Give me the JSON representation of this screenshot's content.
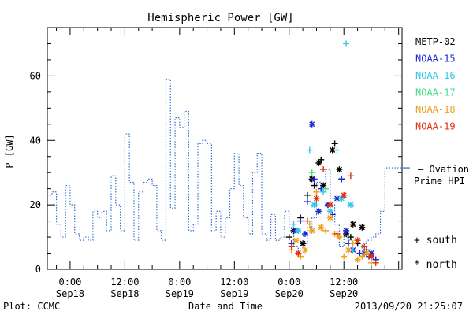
{
  "chart_data": {
    "type": "line",
    "title": "Hemispheric Power [GW]",
    "ylabel": "P [GW]",
    "xlabel": "Date and Time",
    "ylim": [
      0,
      75
    ],
    "xlim": [
      "2013-09-17 19:00",
      "2013-09-21 00:45"
    ],
    "yticks": [
      0,
      20,
      40,
      60
    ],
    "xticks": [
      {
        "time": "2013-09-18 00:00",
        "line1": "0:00",
        "line2": "Sep18"
      },
      {
        "time": "2013-09-18 12:00",
        "line1": "12:00",
        "line2": "Sep18"
      },
      {
        "time": "2013-09-19 00:00",
        "line1": "0:00",
        "line2": "Sep19"
      },
      {
        "time": "2013-09-19 12:00",
        "line1": "12:00",
        "line2": "Sep19"
      },
      {
        "time": "2013-09-20 00:00",
        "line1": "0:00",
        "line2": "Sep20"
      },
      {
        "time": "2013-09-20 12:00",
        "line1": "12:00",
        "line2": "Sep20"
      }
    ],
    "legend": [
      {
        "label": "METP-02",
        "color": "#000000"
      },
      {
        "label": "NOAA-15",
        "color": "#1a2ad8"
      },
      {
        "label": "NOAA-16",
        "color": "#30c8e8"
      },
      {
        "label": "NOAA-17",
        "color": "#40e080"
      },
      {
        "label": "NOAA-18",
        "color": "#f0a020"
      },
      {
        "label": "NOAA-19",
        "color": "#e03010"
      }
    ],
    "ovation": {
      "label_line1": "— Ovation",
      "label_line2": "Prime HPI",
      "color": "#2f6fd0",
      "current_value": 31.5,
      "x": [
        "2013-09-17 19:00",
        "2013-09-17 20:00",
        "2013-09-17 21:00",
        "2013-09-17 22:00",
        "2013-09-17 23:00",
        "2013-09-18 00:00",
        "2013-09-18 01:00",
        "2013-09-18 02:00",
        "2013-09-18 03:00",
        "2013-09-18 04:00",
        "2013-09-18 05:00",
        "2013-09-18 06:00",
        "2013-09-18 07:00",
        "2013-09-18 08:00",
        "2013-09-18 09:00",
        "2013-09-18 10:00",
        "2013-09-18 11:00",
        "2013-09-18 12:00",
        "2013-09-18 13:00",
        "2013-09-18 14:00",
        "2013-09-18 15:00",
        "2013-09-18 16:00",
        "2013-09-18 17:00",
        "2013-09-18 18:00",
        "2013-09-18 19:00",
        "2013-09-18 20:00",
        "2013-09-18 21:00",
        "2013-09-18 22:00",
        "2013-09-18 23:00",
        "2013-09-19 00:00",
        "2013-09-19 01:00",
        "2013-09-19 02:00",
        "2013-09-19 03:00",
        "2013-09-19 04:00",
        "2013-09-19 05:00",
        "2013-09-19 06:00",
        "2013-09-19 07:00",
        "2013-09-19 08:00",
        "2013-09-19 09:00",
        "2013-09-19 10:00",
        "2013-09-19 11:00",
        "2013-09-19 12:00",
        "2013-09-19 13:00",
        "2013-09-19 14:00",
        "2013-09-19 15:00",
        "2013-09-19 16:00",
        "2013-09-19 17:00",
        "2013-09-19 18:00",
        "2013-09-19 19:00",
        "2013-09-19 20:00",
        "2013-09-19 21:00",
        "2013-09-19 22:00",
        "2013-09-19 23:00",
        "2013-09-20 00:00",
        "2013-09-20 01:00",
        "2013-09-20 02:00",
        "2013-09-20 03:00",
        "2013-09-20 04:00",
        "2013-09-20 05:00",
        "2013-09-20 06:00",
        "2013-09-20 07:00",
        "2013-09-20 08:00",
        "2013-09-20 09:00",
        "2013-09-20 10:00",
        "2013-09-20 11:00",
        "2013-09-20 12:00",
        "2013-09-20 13:00",
        "2013-09-20 14:00",
        "2013-09-20 15:00",
        "2013-09-20 16:00",
        "2013-09-20 17:00",
        "2013-09-20 18:00",
        "2013-09-20 19:00",
        "2013-09-20 20:00",
        "2013-09-20 21:00"
      ],
      "y": [
        23,
        24,
        14,
        10,
        26,
        20,
        11,
        9,
        10,
        9,
        18,
        16,
        18,
        12,
        29,
        20,
        12,
        42,
        27,
        9,
        24,
        27,
        28,
        26,
        12,
        9,
        59,
        19,
        47,
        44,
        49,
        12,
        14,
        39,
        40,
        39,
        12,
        18,
        10,
        16,
        25,
        36,
        26,
        16,
        11,
        30,
        36,
        11,
        9,
        17,
        9,
        10,
        18,
        13,
        7,
        6,
        8,
        13,
        16,
        27,
        24,
        31,
        20,
        14,
        7,
        10,
        9,
        6,
        6,
        8,
        9,
        10,
        11,
        18,
        31.5
      ]
    },
    "series": [
      {
        "name": "METP-02",
        "color": "#000000",
        "marker": "mixed",
        "x": [
          "2013-09-20 00:00",
          "2013-09-20 01:00",
          "2013-09-20 02:30",
          "2013-09-20 03:00",
          "2013-09-20 04:00",
          "2013-09-20 05:00",
          "2013-09-20 05:30",
          "2013-09-20 06:30",
          "2013-09-20 07:00",
          "2013-09-20 07:30",
          "2013-09-20 08:30",
          "2013-09-20 09:30",
          "2013-09-20 10:00",
          "2013-09-20 11:00",
          "2013-09-20 11:30",
          "2013-09-20 12:30",
          "2013-09-20 13:30",
          "2013-09-20 14:00",
          "2013-09-20 15:00",
          "2013-09-20 16:00",
          "2013-09-20 17:00",
          "2013-09-20 18:00",
          "2013-09-20 19:00"
        ],
        "y": [
          10,
          12,
          16,
          8,
          23,
          28,
          26,
          33,
          34,
          26,
          20,
          37,
          39,
          31,
          28,
          11,
          10,
          14,
          8,
          13,
          6,
          4,
          3
        ]
      },
      {
        "name": "NOAA-15",
        "color": "#1a2ad8",
        "marker": "mixed",
        "x": [
          "2013-09-20 00:30",
          "2013-09-20 01:30",
          "2013-09-20 02:30",
          "2013-09-20 03:30",
          "2013-09-20 04:00",
          "2013-09-20 05:00",
          "2013-09-20 05:30",
          "2013-09-20 06:30",
          "2013-09-20 07:00",
          "2013-09-20 08:30",
          "2013-09-20 09:30",
          "2013-09-20 10:30",
          "2013-09-20 11:30",
          "2013-09-20 12:30",
          "2013-09-20 13:00",
          "2013-09-20 14:00",
          "2013-09-20 15:30",
          "2013-09-20 16:30",
          "2013-09-20 17:30",
          "2013-09-20 18:00",
          "2013-09-20 19:00"
        ],
        "y": [
          8,
          12,
          15,
          11,
          21,
          45,
          28,
          18,
          25,
          20,
          17,
          22,
          28,
          12,
          8,
          6,
          5,
          5,
          4,
          5,
          3
        ]
      },
      {
        "name": "NOAA-16",
        "color": "#30c8e8",
        "marker": "mixed",
        "x": [
          "2013-09-20 01:00",
          "2013-09-20 02:00",
          "2013-09-20 04:30",
          "2013-09-20 05:30",
          "2013-09-20 07:30",
          "2013-09-20 09:00",
          "2013-09-20 10:30",
          "2013-09-20 11:30",
          "2013-09-20 12:30",
          "2013-09-20 13:30",
          "2013-09-20 14:00"
        ],
        "y": [
          14,
          12,
          37,
          20,
          24,
          18,
          37,
          22,
          70,
          20,
          6
        ]
      },
      {
        "name": "NOAA-17",
        "color": "#40e080",
        "marker": "plus",
        "x": [
          "2013-09-20 05:00",
          "2013-09-20 08:00"
        ],
        "y": [
          30,
          25
        ]
      },
      {
        "name": "NOAA-18",
        "color": "#f0a020",
        "marker": "mixed",
        "x": [
          "2013-09-20 00:30",
          "2013-09-20 01:30",
          "2013-09-20 02:30",
          "2013-09-20 03:30",
          "2013-09-20 04:30",
          "2013-09-20 05:00",
          "2013-09-20 06:00",
          "2013-09-20 07:00",
          "2013-09-20 08:00",
          "2013-09-20 09:00",
          "2013-09-20 10:00",
          "2013-09-20 11:00",
          "2013-09-20 12:00",
          "2013-09-20 13:00",
          "2013-09-20 14:00",
          "2013-09-20 15:00",
          "2013-09-20 16:00",
          "2013-09-20 17:00",
          "2013-09-20 18:00"
        ],
        "y": [
          6,
          9,
          4,
          6,
          14,
          12,
          24,
          13,
          12,
          16,
          11,
          10,
          4,
          6,
          8,
          3,
          4,
          5,
          2
        ]
      },
      {
        "name": "NOAA-19",
        "color": "#e03010",
        "marker": "mixed",
        "x": [
          "2013-09-20 00:30",
          "2013-09-20 02:00",
          "2013-09-20 04:00",
          "2013-09-20 06:00",
          "2013-09-20 07:30",
          "2013-09-20 09:00",
          "2013-09-20 10:30",
          "2013-09-20 12:00",
          "2013-09-20 13:30",
          "2013-09-20 15:00",
          "2013-09-20 16:30",
          "2013-09-20 18:00",
          "2013-09-20 19:00"
        ],
        "y": [
          7,
          5,
          15,
          22,
          31,
          20,
          11,
          23,
          29,
          9,
          7,
          4,
          2
        ]
      }
    ],
    "markers_key": [
      {
        "symbol": "+",
        "label": "south"
      },
      {
        "symbol": "*",
        "label": "north"
      }
    ]
  },
  "footer": {
    "credit": "Plot: CCMC",
    "timestamp": "2013/09/20 21:25:07"
  }
}
